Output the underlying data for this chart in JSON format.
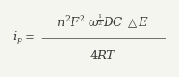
{
  "formula_top": "$n^2F^2\\;\\omega^{\\frac{1}{2}}DC\\;\\triangle E$",
  "formula_bottom": "$4RT$",
  "formula_left": "$i_p=$",
  "background_color": "#f5f5f0",
  "text_color": "#3a3a3a",
  "fontsize": 9.5,
  "figsize": [
    2.0,
    0.86
  ],
  "dpi": 100
}
